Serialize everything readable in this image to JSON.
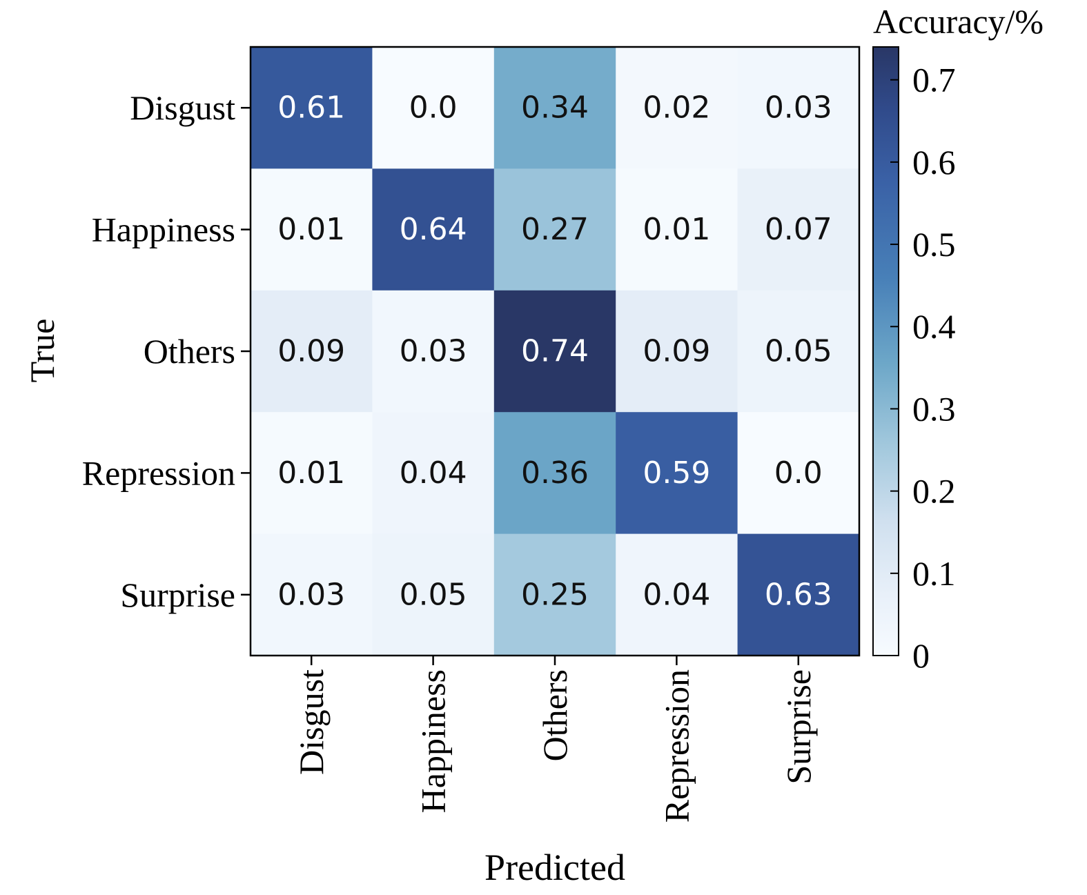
{
  "chart_data": {
    "type": "heatmap",
    "title": "",
    "xlabel": "Predicted",
    "ylabel": "True",
    "x_categories": [
      "Disgust",
      "Happiness",
      "Others",
      "Repression",
      "Surprise"
    ],
    "y_categories": [
      "Disgust",
      "Happiness",
      "Others",
      "Repression",
      "Surprise"
    ],
    "values": [
      [
        0.61,
        0.0,
        0.34,
        0.02,
        0.03
      ],
      [
        0.01,
        0.64,
        0.27,
        0.01,
        0.07
      ],
      [
        0.09,
        0.03,
        0.74,
        0.09,
        0.05
      ],
      [
        0.01,
        0.04,
        0.36,
        0.59,
        0.0
      ],
      [
        0.03,
        0.05,
        0.25,
        0.04,
        0.63
      ]
    ],
    "cell_labels": [
      [
        "0.61",
        "0.0",
        "0.34",
        "0.02",
        "0.03"
      ],
      [
        "0.01",
        "0.64",
        "0.27",
        "0.01",
        "0.07"
      ],
      [
        "0.09",
        "0.03",
        "0.74",
        "0.09",
        "0.05"
      ],
      [
        "0.01",
        "0.04",
        "0.36",
        "0.59",
        "0.0"
      ],
      [
        "0.03",
        "0.05",
        "0.25",
        "0.04",
        "0.63"
      ]
    ],
    "colorbar": {
      "label": "Accuracy/%",
      "range": [
        0,
        0.74
      ],
      "ticks": [
        0,
        0.1,
        0.2,
        0.3,
        0.4,
        0.5,
        0.6,
        0.7
      ],
      "tick_labels": [
        "0",
        "0.1",
        "0.2",
        "0.3",
        "0.4",
        "0.5",
        "0.6",
        "0.7"
      ],
      "colormap": "Blues",
      "color_low": "#f7fbff",
      "color_high": "#293766"
    },
    "grid": false,
    "colorbar_position": "right"
  }
}
